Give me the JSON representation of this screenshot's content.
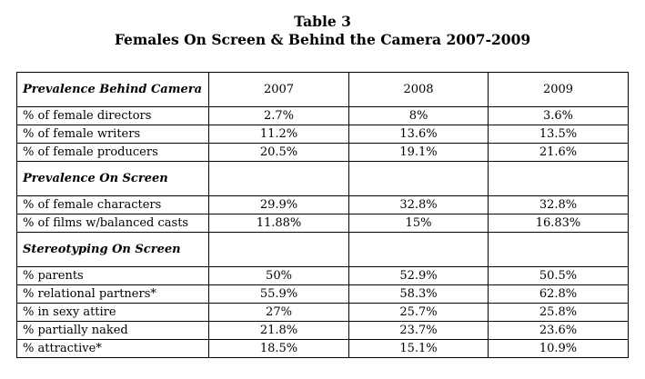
{
  "title": {
    "line1": "Table 3",
    "line2": "Females On Screen & Behind the Camera 2007-2009"
  },
  "columns": [
    "2007",
    "2008",
    "2009"
  ],
  "sections": [
    {
      "heading": "Prevalence Behind Camera",
      "rows": [
        {
          "label": "% of female directors",
          "values": [
            "2.7%",
            "8%",
            "3.6%"
          ]
        },
        {
          "label": "% of female writers",
          "values": [
            "11.2%",
            "13.6%",
            "13.5%"
          ]
        },
        {
          "label": "% of female producers",
          "values": [
            "20.5%",
            "19.1%",
            "21.6%"
          ]
        }
      ]
    },
    {
      "heading": "Prevalence On Screen",
      "rows": [
        {
          "label": "% of female characters",
          "values": [
            "29.9%",
            "32.8%",
            "32.8%"
          ]
        },
        {
          "label": "% of films w/balanced casts",
          "values": [
            "11.88%",
            "15%",
            "16.83%"
          ]
        }
      ]
    },
    {
      "heading": "Stereotyping On Screen",
      "rows": [
        {
          "label": "% parents",
          "values": [
            "50%",
            "52.9%",
            "50.5%"
          ]
        },
        {
          "label": "% relational partners*",
          "values": [
            "55.9%",
            "58.3%",
            "62.8%"
          ]
        },
        {
          "label": "% in sexy attire",
          "values": [
            "27%",
            "25.7%",
            "25.8%"
          ]
        },
        {
          "label": "% partially naked",
          "values": [
            "21.8%",
            "23.7%",
            "23.6%"
          ]
        },
        {
          "label": "% attractive*",
          "values": [
            "18.5%",
            "15.1%",
            "10.9%"
          ]
        }
      ]
    }
  ]
}
